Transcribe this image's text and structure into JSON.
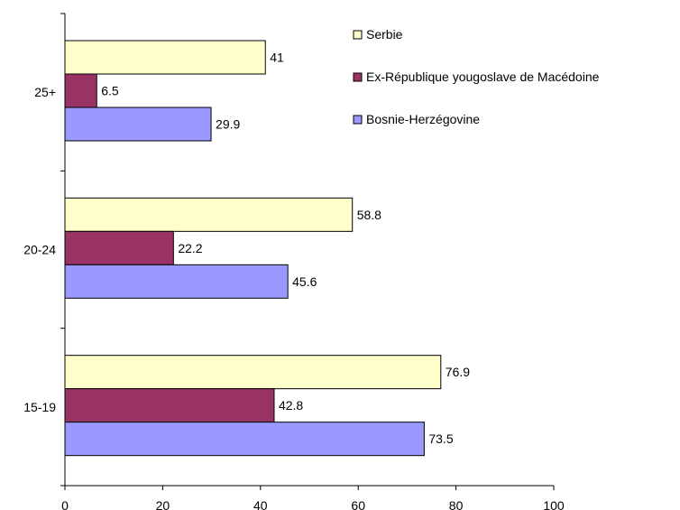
{
  "chart_data": {
    "type": "bar",
    "orientation": "horizontal",
    "title": "",
    "xlabel": "",
    "ylabel": "",
    "categories": [
      "15-19",
      "20-24",
      "25+"
    ],
    "xlim": [
      0,
      100
    ],
    "xticks": [
      "0",
      "20",
      "40",
      "60",
      "80",
      "100"
    ],
    "grid": false,
    "legend_position": "top-right",
    "series": [
      {
        "name": "Serbie",
        "color": "#FFFFCC",
        "values": [
          76.9,
          58.8,
          41
        ]
      },
      {
        "name": "Ex-République yougoslave de Macédoine",
        "color": "#993366",
        "values": [
          42.8,
          22.2,
          6.5
        ]
      },
      {
        "name": "Bosnie-Herzégovine",
        "color": "#9999FF",
        "values": [
          73.5,
          45.6,
          29.9
        ]
      }
    ],
    "data_labels": [
      [
        "76.9",
        "58.8",
        "41"
      ],
      [
        "42.8",
        "22.2",
        "6.5"
      ],
      [
        "73.5",
        "45.6",
        "29.9"
      ]
    ]
  }
}
